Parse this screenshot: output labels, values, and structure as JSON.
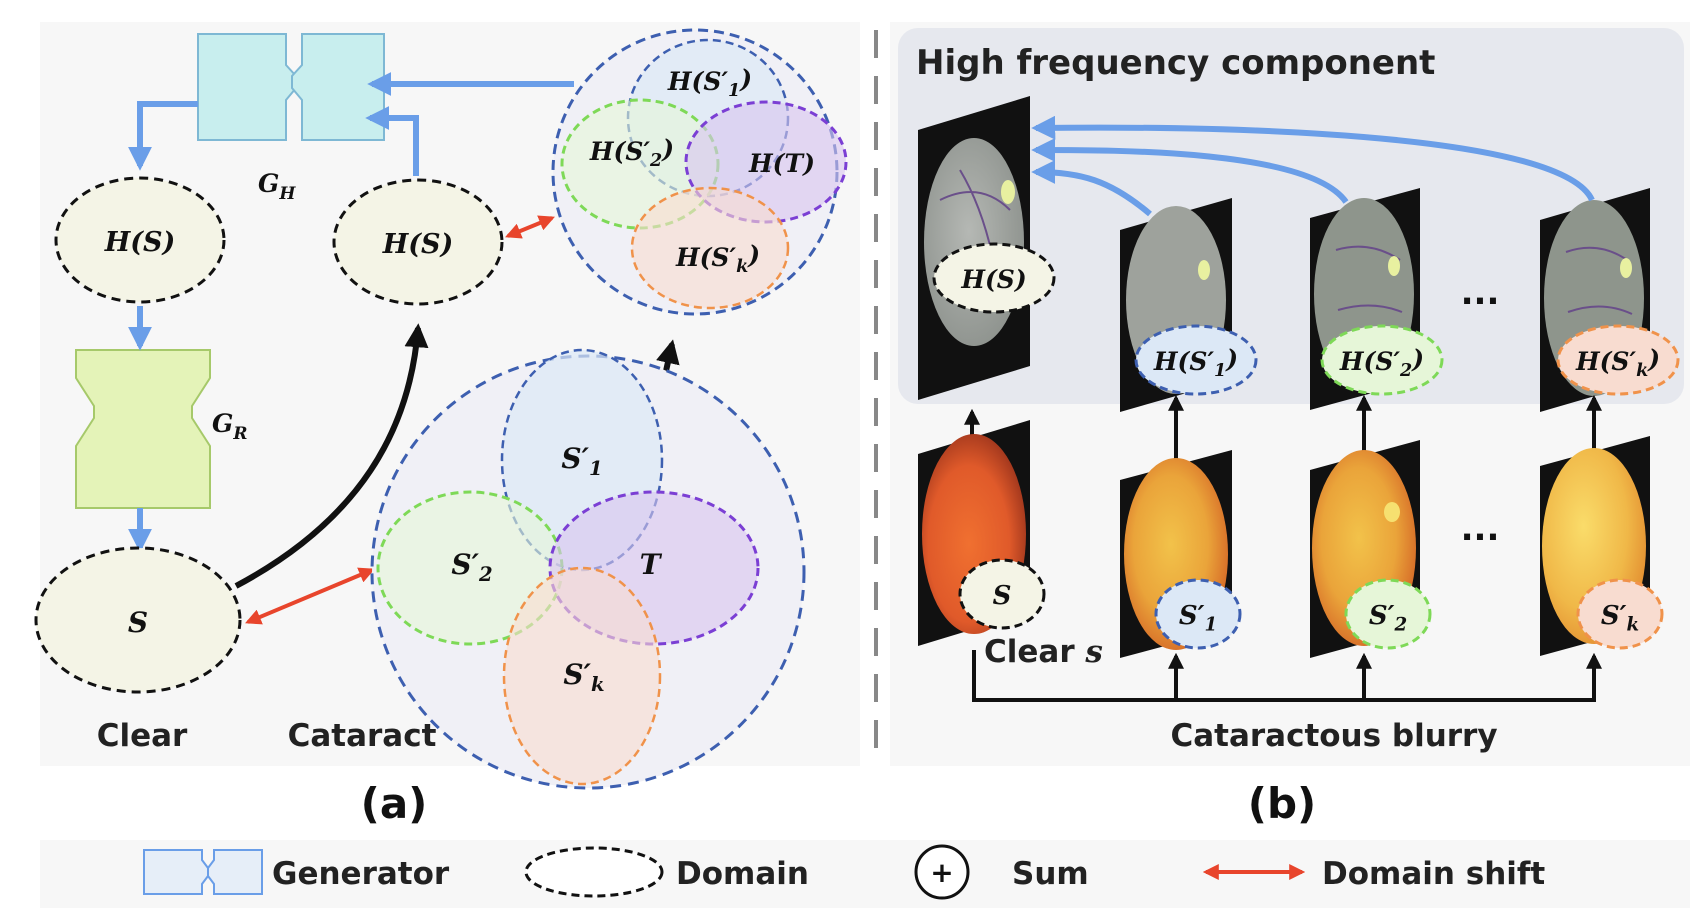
{
  "panel_a": {
    "caption": "(a)",
    "generator_h_label": "G_H",
    "generator_r_label": "G_R",
    "domain_hs_left": "H(S)",
    "domain_hs_right": "H(S)",
    "domain_s": "S",
    "clear_label": "Clear",
    "cataract_label": "Cataract",
    "big_sets": {
      "s1": "S'1",
      "s2": "S'2",
      "t": "T",
      "sk": "S'k"
    },
    "small_sets": {
      "hs1": "H(S'1)",
      "hs2": "H(S'2)",
      "ht": "H(T)",
      "hsk": "H(S'k)"
    }
  },
  "panel_b": {
    "caption": "(b)",
    "hf_title": "High frequency component",
    "top_badges": [
      "H(S)",
      "H(S'1)",
      "H(S'2)",
      "H(S'k)"
    ],
    "bottom_badges": [
      "S",
      "S'1",
      "S'2",
      "S'k"
    ],
    "clear_s_label": "Clear s",
    "cataractous_label": "Cataractous blurry",
    "ellipsis": "..."
  },
  "legend": {
    "generator": "Generator",
    "domain": "Domain",
    "sum": "Sum",
    "sum_symbol": "+",
    "domain_shift": "Domain shift"
  },
  "colors": {
    "blue_arrow": "#6a9ee8",
    "red_arrow": "#e8452c",
    "s1_blue": "#3d5fb0",
    "s2_green": "#7ed957",
    "t_purple": "#7b3fd4",
    "sk_orange": "#f0924a",
    "generator_h_fill": "#c8eeee",
    "generator_r_fill": "#e4f3b8",
    "domain_fill": "#f4f4e6"
  }
}
